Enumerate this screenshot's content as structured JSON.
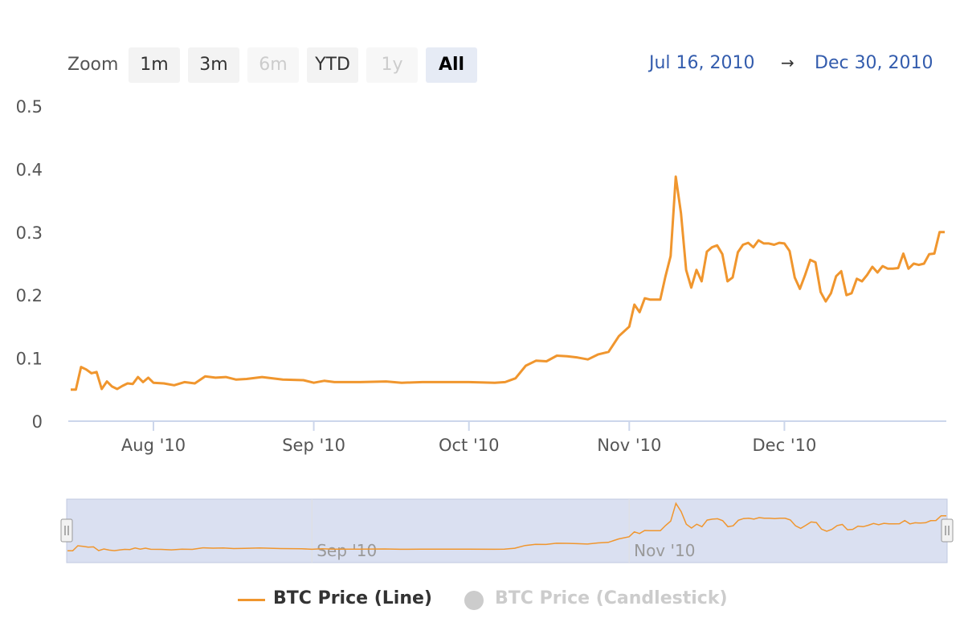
{
  "zoom": {
    "label": "Zoom",
    "buttons": [
      {
        "label": "1m",
        "state": "enabled"
      },
      {
        "label": "3m",
        "state": "enabled"
      },
      {
        "label": "6m",
        "state": "disabled"
      },
      {
        "label": "YTD",
        "state": "enabled"
      },
      {
        "label": "1y",
        "state": "disabled"
      },
      {
        "label": "All",
        "state": "active"
      }
    ]
  },
  "range": {
    "from": "Jul 16, 2010",
    "arrow": "→",
    "to": "Dec 30, 2010"
  },
  "legend": {
    "items": [
      {
        "label": "BTC Price (Line)",
        "color": "#f0962e",
        "visible": true
      },
      {
        "label": "BTC Price (Candlestick)",
        "color": "#cccccc",
        "visible": false
      }
    ]
  },
  "colors": {
    "line": "#f0962e",
    "navigator_fill": "#d3dbee",
    "axis_text": "#555555",
    "range_text": "#335cad"
  },
  "chart_data": {
    "type": "line",
    "y_ticks": [
      "0",
      "0.1",
      "0.2",
      "0.3",
      "0.4",
      "0.5"
    ],
    "x_ticks": [
      "Aug '10",
      "Sep '10",
      "Oct '10",
      "Nov '10",
      "Dec '10"
    ],
    "navigator_ticks": [
      "Sep '10",
      "Nov '10"
    ],
    "ylim": [
      0,
      0.5
    ],
    "xlim": [
      "2010-07-16",
      "2010-12-30"
    ],
    "series": [
      {
        "name": "BTC Price (Line)",
        "points": [
          [
            "2010-07-16",
            0.05
          ],
          [
            "2010-07-17",
            0.05
          ],
          [
            "2010-07-18",
            0.086
          ],
          [
            "2010-07-19",
            0.082
          ],
          [
            "2010-07-20",
            0.076
          ],
          [
            "2010-07-21",
            0.078
          ],
          [
            "2010-07-22",
            0.051
          ],
          [
            "2010-07-23",
            0.063
          ],
          [
            "2010-07-24",
            0.055
          ],
          [
            "2010-07-25",
            0.051
          ],
          [
            "2010-07-26",
            0.056
          ],
          [
            "2010-07-27",
            0.06
          ],
          [
            "2010-07-28",
            0.059
          ],
          [
            "2010-07-29",
            0.07
          ],
          [
            "2010-07-30",
            0.062
          ],
          [
            "2010-07-31",
            0.069
          ],
          [
            "2010-08-01",
            0.061
          ],
          [
            "2010-08-03",
            0.06
          ],
          [
            "2010-08-05",
            0.057
          ],
          [
            "2010-08-07",
            0.062
          ],
          [
            "2010-08-09",
            0.06
          ],
          [
            "2010-08-11",
            0.071
          ],
          [
            "2010-08-13",
            0.069
          ],
          [
            "2010-08-15",
            0.07
          ],
          [
            "2010-08-17",
            0.066
          ],
          [
            "2010-08-19",
            0.067
          ],
          [
            "2010-08-22",
            0.07
          ],
          [
            "2010-08-26",
            0.066
          ],
          [
            "2010-08-30",
            0.065
          ],
          [
            "2010-09-01",
            0.061
          ],
          [
            "2010-09-03",
            0.064
          ],
          [
            "2010-09-05",
            0.062
          ],
          [
            "2010-09-10",
            0.062
          ],
          [
            "2010-09-15",
            0.063
          ],
          [
            "2010-09-18",
            0.061
          ],
          [
            "2010-09-22",
            0.062
          ],
          [
            "2010-09-25",
            0.062
          ],
          [
            "2010-10-01",
            0.062
          ],
          [
            "2010-10-06",
            0.061
          ],
          [
            "2010-10-08",
            0.062
          ],
          [
            "2010-10-10",
            0.068
          ],
          [
            "2010-10-12",
            0.088
          ],
          [
            "2010-10-14",
            0.096
          ],
          [
            "2010-10-16",
            0.095
          ],
          [
            "2010-10-18",
            0.104
          ],
          [
            "2010-10-20",
            0.103
          ],
          [
            "2010-10-22",
            0.101
          ],
          [
            "2010-10-24",
            0.098
          ],
          [
            "2010-10-26",
            0.106
          ],
          [
            "2010-10-28",
            0.11
          ],
          [
            "2010-10-30",
            0.135
          ],
          [
            "2010-11-01",
            0.15
          ],
          [
            "2010-11-02",
            0.185
          ],
          [
            "2010-11-03",
            0.173
          ],
          [
            "2010-11-04",
            0.195
          ],
          [
            "2010-11-05",
            0.193
          ],
          [
            "2010-11-07",
            0.193
          ],
          [
            "2010-11-08",
            0.23
          ],
          [
            "2010-11-09",
            0.262
          ],
          [
            "2010-11-10",
            0.388
          ],
          [
            "2010-11-11",
            0.33
          ],
          [
            "2010-11-12",
            0.24
          ],
          [
            "2010-11-13",
            0.212
          ],
          [
            "2010-11-14",
            0.24
          ],
          [
            "2010-11-15",
            0.222
          ],
          [
            "2010-11-16",
            0.269
          ],
          [
            "2010-11-17",
            0.276
          ],
          [
            "2010-11-18",
            0.279
          ],
          [
            "2010-11-19",
            0.265
          ],
          [
            "2010-11-20",
            0.222
          ],
          [
            "2010-11-21",
            0.228
          ],
          [
            "2010-11-22",
            0.268
          ],
          [
            "2010-11-23",
            0.28
          ],
          [
            "2010-11-24",
            0.283
          ],
          [
            "2010-11-25",
            0.276
          ],
          [
            "2010-11-26",
            0.287
          ],
          [
            "2010-11-27",
            0.282
          ],
          [
            "2010-11-28",
            0.282
          ],
          [
            "2010-11-29",
            0.28
          ],
          [
            "2010-11-30",
            0.283
          ],
          [
            "2010-12-01",
            0.282
          ],
          [
            "2010-12-02",
            0.27
          ],
          [
            "2010-12-03",
            0.228
          ],
          [
            "2010-12-04",
            0.21
          ],
          [
            "2010-12-05",
            0.232
          ],
          [
            "2010-12-06",
            0.256
          ],
          [
            "2010-12-07",
            0.252
          ],
          [
            "2010-12-08",
            0.205
          ],
          [
            "2010-12-09",
            0.19
          ],
          [
            "2010-12-10",
            0.203
          ],
          [
            "2010-12-11",
            0.23
          ],
          [
            "2010-12-12",
            0.238
          ],
          [
            "2010-12-13",
            0.2
          ],
          [
            "2010-12-14",
            0.203
          ],
          [
            "2010-12-15",
            0.226
          ],
          [
            "2010-12-16",
            0.222
          ],
          [
            "2010-12-17",
            0.232
          ],
          [
            "2010-12-18",
            0.245
          ],
          [
            "2010-12-19",
            0.236
          ],
          [
            "2010-12-20",
            0.246
          ],
          [
            "2010-12-21",
            0.242
          ],
          [
            "2010-12-22",
            0.242
          ],
          [
            "2010-12-23",
            0.243
          ],
          [
            "2010-12-24",
            0.266
          ],
          [
            "2010-12-25",
            0.242
          ],
          [
            "2010-12-26",
            0.25
          ],
          [
            "2010-12-27",
            0.248
          ],
          [
            "2010-12-28",
            0.25
          ],
          [
            "2010-12-29",
            0.265
          ],
          [
            "2010-12-30",
            0.266
          ],
          [
            "2010-12-31",
            0.3
          ],
          [
            "2011-01-01",
            0.3
          ]
        ]
      }
    ]
  }
}
